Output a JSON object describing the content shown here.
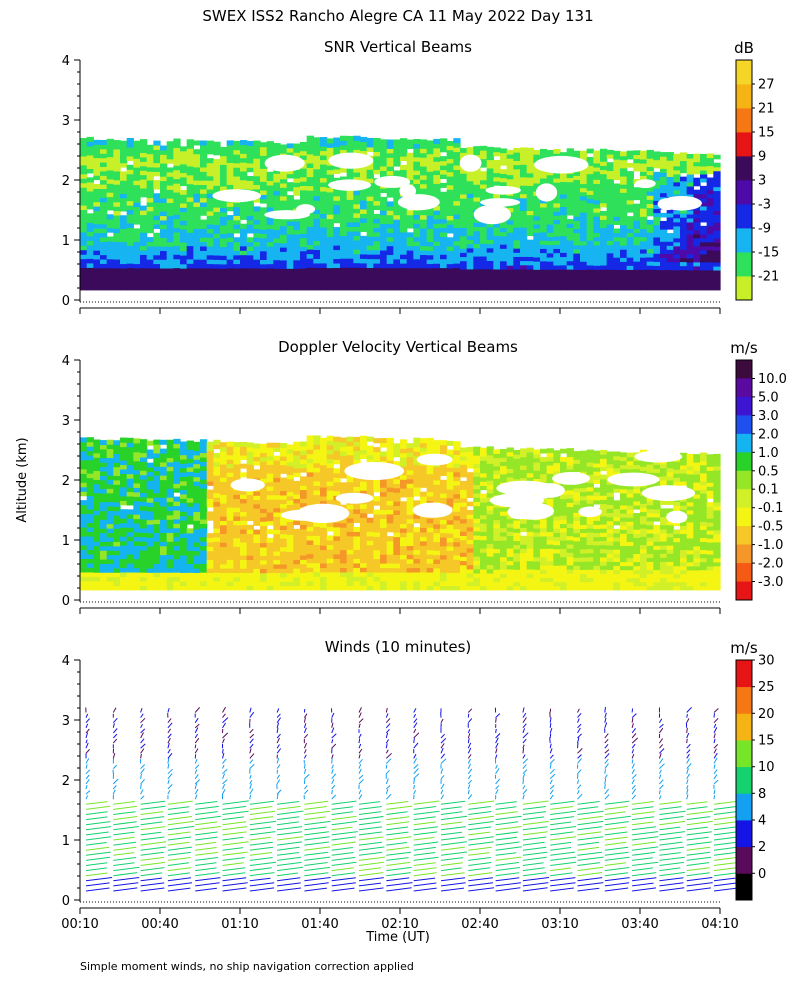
{
  "figure": {
    "title": "SWEX ISS2 Rancho Alegre CA  11 May 2022 Day 131",
    "ylabel": "Altitude (km)",
    "xlabel": "Time (UT)",
    "footnote": "Simple moment winds, no ship navigation correction applied"
  },
  "x_ticks": [
    "00:10",
    "00:40",
    "01:10",
    "01:40",
    "02:10",
    "02:40",
    "03:10",
    "03:40",
    "04:10"
  ],
  "y_ticks": [
    "0",
    "1",
    "2",
    "3",
    "4"
  ],
  "chart_data": [
    {
      "type": "heatmap",
      "title": "SNR Vertical Beams",
      "units": "dB",
      "x_range": [
        "00:10",
        "04:10"
      ],
      "y_range_km": [
        0,
        4
      ],
      "colorbar_labels": [
        "-21",
        "-15",
        "-9",
        "-3",
        "3",
        "9",
        "15",
        "21",
        "27"
      ],
      "colorbar_colors": [
        "#c8f028",
        "#2ee05a",
        "#16b4f0",
        "#1428e6",
        "#4e0aa8",
        "#3c0a5a",
        "#e61414",
        "#f57814",
        "#f5b414",
        "#f5d628"
      ],
      "data_top_km": 2.7,
      "profile_km": [
        0.2,
        0.5,
        0.8,
        1.1,
        1.4,
        1.7,
        2.0,
        2.3,
        2.6
      ],
      "profile_db": [
        8,
        -3,
        -9,
        -12,
        -15,
        -15,
        -18,
        -19,
        -13
      ]
    },
    {
      "type": "heatmap",
      "title": "Doppler Velocity Vertical Beams",
      "units": "m/s",
      "x_range": [
        "00:10",
        "04:10"
      ],
      "y_range_km": [
        0,
        4
      ],
      "colorbar_labels": [
        "10.0",
        "5.0",
        "3.0",
        "2.0",
        "1.0",
        "0.5",
        "0.1",
        "-0.1",
        "-0.5",
        "-1.0",
        "-2.0",
        "-3.0"
      ],
      "colorbar_colors": [
        "#3c0a3c",
        "#5a0aa0",
        "#3c14d2",
        "#1e50f0",
        "#14b4f0",
        "#28d228",
        "#96e628",
        "#d2f028",
        "#f5f514",
        "#f5c828",
        "#f59628",
        "#f55a14",
        "#e61414"
      ],
      "data_top_km": 2.7
    },
    {
      "type": "wind_barbs",
      "title": "Winds (10 minutes)",
      "units": "m/s",
      "x_range": [
        "00:10",
        "04:10"
      ],
      "y_range_km": [
        0,
        4
      ],
      "colorbar_labels": [
        "0",
        "2",
        "4",
        "8",
        "10",
        "15",
        "20",
        "25",
        "30"
      ],
      "colorbar_colors": [
        "#000000",
        "#5a0a5a",
        "#1414e6",
        "#14a0f0",
        "#14d26e",
        "#78e628",
        "#f5b414",
        "#f57814",
        "#e61414"
      ],
      "profile_count": 24
    }
  ]
}
